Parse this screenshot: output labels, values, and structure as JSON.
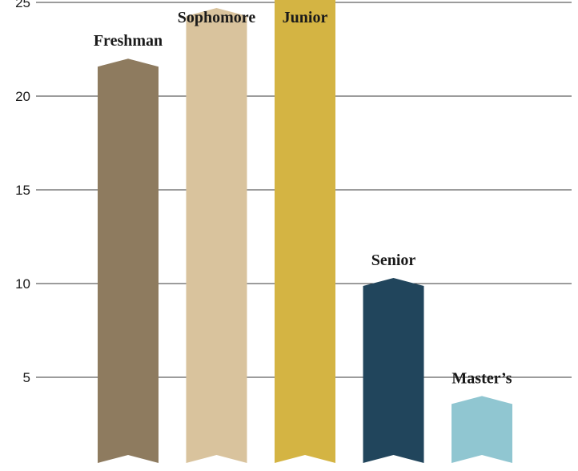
{
  "chart_data": {
    "type": "bar",
    "title": "",
    "xlabel": "",
    "ylabel": "",
    "ylim": [
      0,
      27
    ],
    "yticks": [
      5,
      10,
      15,
      20,
      25
    ],
    "grid": true,
    "categories": [
      "Freshman",
      "Sophomore",
      "Junior",
      "Senior",
      "Master’s"
    ],
    "values": [
      22,
      24.7,
      25.6,
      10.3,
      4
    ],
    "colors": [
      "#8e7b5f",
      "#d9c39d",
      "#d4b443",
      "#21455c",
      "#90c6d1"
    ]
  }
}
